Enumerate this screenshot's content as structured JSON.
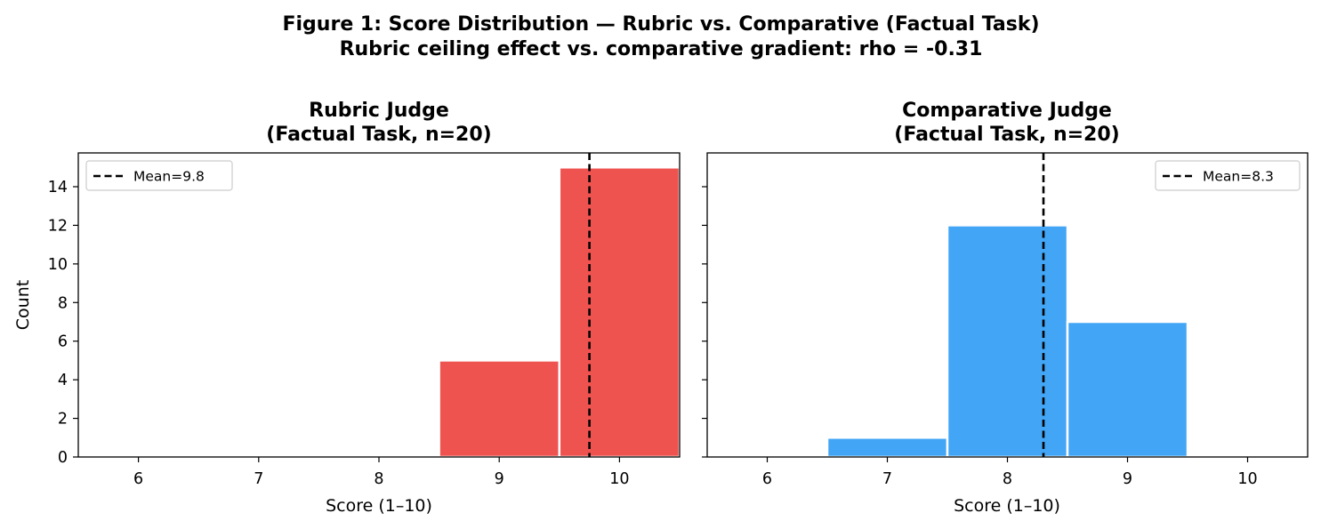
{
  "figure": {
    "title_line1": "Figure 1: Score Distribution — Rubric vs. Comparative (Factual Task)",
    "title_line2": "Rubric ceiling effect vs. comparative gradient: rho = -0.31"
  },
  "chart_data": [
    {
      "type": "bar",
      "title_line1": "Rubric Judge",
      "title_line2": "(Factual Task, n=20)",
      "xlabel": "Score (1–10)",
      "ylabel": "Count",
      "categories": [
        6,
        7,
        8,
        9,
        10
      ],
      "values": [
        0,
        0,
        0,
        5,
        15
      ],
      "x_ticks": [
        "6",
        "7",
        "8",
        "9",
        "10"
      ],
      "y_ticks": [
        "0",
        "2",
        "4",
        "6",
        "8",
        "10",
        "12",
        "14"
      ],
      "xlim": [
        5.5,
        10.5
      ],
      "ylim": [
        0,
        15.75
      ],
      "color": "#ef5350",
      "mean": 9.75,
      "mean_label": "Mean=9.8",
      "legend_position": "upper-left",
      "grid": false
    },
    {
      "type": "bar",
      "title_line1": "Comparative Judge",
      "title_line2": "(Factual Task, n=20)",
      "xlabel": "Score (1–10)",
      "ylabel": "",
      "categories": [
        6,
        7,
        8,
        9,
        10
      ],
      "values": [
        0,
        1,
        12,
        7,
        0
      ],
      "x_ticks": [
        "6",
        "7",
        "8",
        "9",
        "10"
      ],
      "y_ticks": [],
      "xlim": [
        5.5,
        10.5
      ],
      "ylim": [
        0,
        15.75
      ],
      "color": "#42a5f5",
      "mean": 8.3,
      "mean_label": "Mean=8.3",
      "legend_position": "upper-right",
      "grid": false
    }
  ]
}
